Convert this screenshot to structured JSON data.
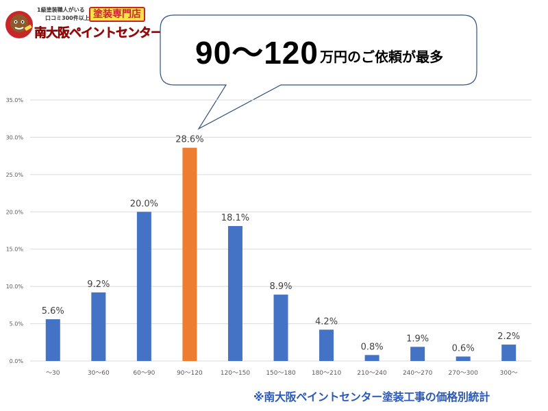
{
  "logo": {
    "tagline_1": "1級塗装職人がいる",
    "tagline_2": "口コミ300件以上の",
    "specialty": "塗装専門店",
    "name": "南大阪ペイントセンター"
  },
  "bubble": {
    "big_text": "90〜120",
    "small_text": "万円のご依頼が最多"
  },
  "source_note": "※南大阪ペイントセンター塗装工事の価格別統計",
  "colors": {
    "bar": "#4472c4",
    "highlight": "#ed7d31",
    "grid": "#d9d9d9",
    "axis_text": "#595959",
    "bubble_stroke": "#2f4f7f"
  },
  "chart_data": {
    "type": "bar",
    "categories": [
      "〜30",
      "30〜60",
      "60〜90",
      "90〜120",
      "120〜150",
      "150〜180",
      "180〜210",
      "210〜240",
      "240〜270",
      "270〜300",
      "300〜"
    ],
    "values": [
      5.6,
      9.2,
      20.0,
      28.6,
      18.1,
      8.9,
      4.2,
      0.8,
      1.9,
      0.6,
      2.2
    ],
    "data_labels": [
      "5.6%",
      "9.2%",
      "20.0%",
      "28.6%",
      "18.1%",
      "8.9%",
      "4.2%",
      "0.8%",
      "1.9%",
      "0.6%",
      "2.2%"
    ],
    "highlight_index": 3,
    "yticks": [
      0,
      5,
      10,
      15,
      20,
      25,
      30,
      35
    ],
    "ytick_labels": [
      "0.0%",
      "5.0%",
      "10.0%",
      "15.0%",
      "20.0%",
      "25.0%",
      "30.0%",
      "35.0%"
    ],
    "ylim": [
      0,
      35
    ],
    "grid": true,
    "title": "",
    "xlabel": "",
    "ylabel": ""
  }
}
